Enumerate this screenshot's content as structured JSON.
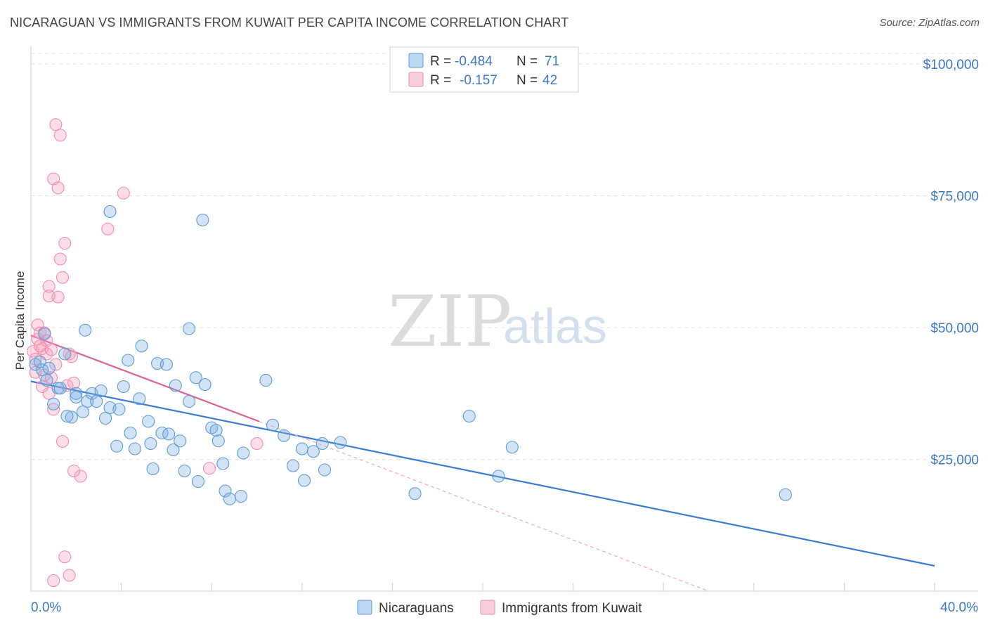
{
  "title": "NICARAGUAN VS IMMIGRANTS FROM KUWAIT PER CAPITA INCOME CORRELATION CHART",
  "source": "Source: ZipAtlas.com",
  "watermark": {
    "zip": "ZIP",
    "atlas": "atlas"
  },
  "colors": {
    "blue": "#5b9bd5",
    "blue_line": "#3a7bd5",
    "pink": "#f08caf",
    "pink_line": "#e0608e",
    "tick_text": "#3b78c4"
  },
  "legend_top": {
    "rows": [
      {
        "r_label": "R =",
        "r_value": "-0.484",
        "n_label": "N =",
        "n_value": "71"
      },
      {
        "r_label": "R =",
        "r_value": "-0.157",
        "n_label": "N =",
        "n_value": "42"
      }
    ]
  },
  "legend_bottom": [
    "Nicaraguans",
    "Immigrants from Kuwait"
  ],
  "chart_data": {
    "type": "scatter",
    "title": "NICARAGUAN VS IMMIGRANTS FROM KUWAIT PER CAPITA INCOME CORRELATION CHART",
    "xlabel": "",
    "ylabel": "Per Capita Income",
    "xlim": [
      0,
      40
    ],
    "ylim": [
      0,
      102000
    ],
    "x_tick_labels": [
      "0.0%",
      "40.0%"
    ],
    "y_ticks": [
      25000,
      50000,
      75000,
      100000
    ],
    "y_tick_labels": [
      "$25,000",
      "$50,000",
      "$75,000",
      "$100,000"
    ],
    "grid": true,
    "legend_position": "bottom",
    "series": [
      {
        "name": "Nicaraguans",
        "color": "#5b9bd5",
        "trend": {
          "x": [
            0,
            40
          ],
          "y": [
            39800,
            4800
          ]
        },
        "points": [
          [
            0.2,
            43000
          ],
          [
            0.5,
            42000
          ],
          [
            0.6,
            48800
          ],
          [
            0.7,
            40000
          ],
          [
            1.0,
            35500
          ],
          [
            1.2,
            38500
          ],
          [
            1.5,
            45000
          ],
          [
            1.8,
            33000
          ],
          [
            2.0,
            37500
          ],
          [
            2.3,
            34000
          ],
          [
            2.4,
            49500
          ],
          [
            2.5,
            36000
          ],
          [
            2.7,
            37500
          ],
          [
            2.9,
            36000
          ],
          [
            3.1,
            38000
          ],
          [
            3.3,
            32800
          ],
          [
            3.5,
            34800
          ],
          [
            3.5,
            72000
          ],
          [
            3.8,
            27500
          ],
          [
            3.9,
            34500
          ],
          [
            4.1,
            38800
          ],
          [
            4.3,
            43800
          ],
          [
            4.4,
            30000
          ],
          [
            4.6,
            27000
          ],
          [
            4.8,
            36500
          ],
          [
            4.9,
            46500
          ],
          [
            5.2,
            32200
          ],
          [
            5.3,
            28000
          ],
          [
            5.4,
            23200
          ],
          [
            5.6,
            43200
          ],
          [
            5.8,
            30000
          ],
          [
            6.0,
            43000
          ],
          [
            6.1,
            29800
          ],
          [
            6.3,
            26800
          ],
          [
            6.4,
            39000
          ],
          [
            6.6,
            28500
          ],
          [
            6.8,
            22800
          ],
          [
            7.0,
            36000
          ],
          [
            7.0,
            49800
          ],
          [
            7.3,
            40500
          ],
          [
            7.4,
            20800
          ],
          [
            7.6,
            70400
          ],
          [
            7.7,
            39200
          ],
          [
            8.0,
            31000
          ],
          [
            8.2,
            30500
          ],
          [
            8.3,
            28500
          ],
          [
            8.5,
            24200
          ],
          [
            8.6,
            19000
          ],
          [
            8.8,
            17500
          ],
          [
            9.3,
            18000
          ],
          [
            9.4,
            26200
          ],
          [
            10.4,
            40000
          ],
          [
            10.7,
            31500
          ],
          [
            11.2,
            29500
          ],
          [
            11.6,
            23800
          ],
          [
            12.0,
            27000
          ],
          [
            12.1,
            21000
          ],
          [
            12.5,
            26500
          ],
          [
            12.9,
            28000
          ],
          [
            13.0,
            23000
          ],
          [
            13.7,
            28200
          ],
          [
            17.0,
            18500
          ],
          [
            19.4,
            33200
          ],
          [
            20.7,
            21800
          ],
          [
            21.3,
            27300
          ],
          [
            33.4,
            18300
          ],
          [
            0.4,
            43500
          ],
          [
            1.3,
            38500
          ],
          [
            2.0,
            36800
          ],
          [
            0.8,
            42300
          ],
          [
            1.6,
            33200
          ]
        ]
      },
      {
        "name": "Immigrants from Kuwait",
        "color": "#f08caf",
        "trend": {
          "x": [
            0,
            10.1
          ],
          "y": [
            48500,
            32200
          ]
        },
        "trend_extension": {
          "x": [
            10.1,
            30.0
          ],
          "y": [
            32200,
            0
          ]
        },
        "points": [
          [
            0.1,
            45500
          ],
          [
            0.2,
            41500
          ],
          [
            0.3,
            47800
          ],
          [
            0.3,
            50500
          ],
          [
            0.4,
            49000
          ],
          [
            0.5,
            46000
          ],
          [
            0.5,
            38800
          ],
          [
            0.6,
            49000
          ],
          [
            0.7,
            47500
          ],
          [
            0.7,
            45000
          ],
          [
            0.8,
            56000
          ],
          [
            0.8,
            57800
          ],
          [
            0.8,
            37500
          ],
          [
            0.9,
            40500
          ],
          [
            1.0,
            78200
          ],
          [
            1.0,
            34500
          ],
          [
            1.0,
            2000
          ],
          [
            1.1,
            88500
          ],
          [
            1.2,
            76500
          ],
          [
            1.2,
            55800
          ],
          [
            1.3,
            86500
          ],
          [
            1.3,
            63000
          ],
          [
            1.4,
            59500
          ],
          [
            1.4,
            28400
          ],
          [
            1.5,
            6500
          ],
          [
            1.5,
            66000
          ],
          [
            1.6,
            39000
          ],
          [
            1.7,
            45000
          ],
          [
            1.7,
            3000
          ],
          [
            1.8,
            44500
          ],
          [
            1.9,
            39500
          ],
          [
            1.9,
            22800
          ],
          [
            2.2,
            21800
          ],
          [
            3.4,
            68700
          ],
          [
            4.1,
            75500
          ],
          [
            7.9,
            23300
          ],
          [
            10.0,
            28000
          ],
          [
            0.4,
            46500
          ],
          [
            0.9,
            45800
          ],
          [
            0.2,
            44000
          ],
          [
            1.1,
            43000
          ],
          [
            0.6,
            41000
          ]
        ]
      }
    ]
  }
}
